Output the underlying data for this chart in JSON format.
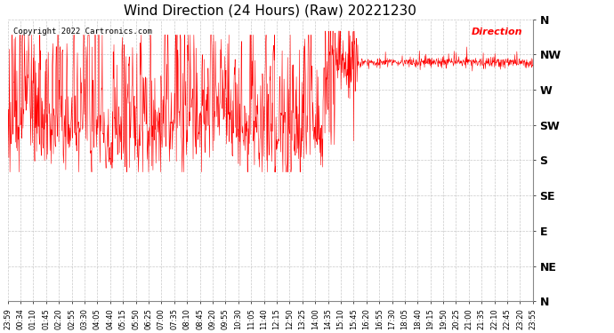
{
  "title": "Wind Direction (24 Hours) (Raw) 20221230",
  "copyright": "Copyright 2022 Cartronics.com",
  "legend_label": "Direction",
  "legend_color": "#ff0000",
  "line_color": "#ff0000",
  "background_color": "#ffffff",
  "grid_color": "#bbbbbb",
  "ytick_labels": [
    "N",
    "NW",
    "W",
    "SW",
    "S",
    "SE",
    "E",
    "NE",
    "N"
  ],
  "ytick_values": [
    360,
    315,
    270,
    225,
    180,
    135,
    90,
    45,
    0
  ],
  "ylim": [
    0,
    360
  ],
  "title_fontsize": 11,
  "tick_fontsize": 7,
  "xtick_labels": [
    "23:59",
    "00:34",
    "01:10",
    "01:45",
    "02:20",
    "02:55",
    "03:30",
    "04:05",
    "04:40",
    "05:15",
    "05:50",
    "06:25",
    "07:00",
    "07:35",
    "08:10",
    "08:45",
    "09:20",
    "09:55",
    "10:30",
    "11:05",
    "11:40",
    "12:15",
    "12:50",
    "13:25",
    "14:00",
    "14:35",
    "15:10",
    "15:45",
    "16:20",
    "16:55",
    "17:30",
    "18:05",
    "18:40",
    "19:15",
    "19:50",
    "20:25",
    "21:00",
    "21:35",
    "22:10",
    "22:45",
    "23:20",
    "23:55"
  ]
}
